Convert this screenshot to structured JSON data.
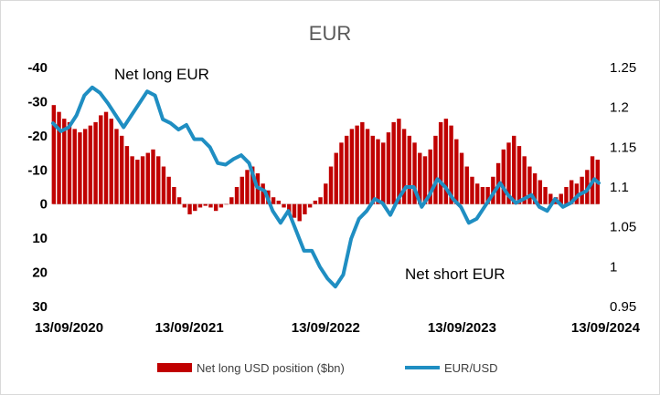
{
  "chart_data": {
    "type": "bar+line",
    "title": "EUR",
    "x_axis": {
      "tick_labels": [
        "13/09/2020",
        "13/09/2021",
        "13/09/2022",
        "13/09/2023",
        "13/09/2024"
      ],
      "range": [
        "2020-09-13",
        "2024-09-13"
      ]
    },
    "y_left": {
      "tick_labels": [
        "-40",
        "-30",
        "-20",
        "-10",
        "0",
        "10",
        "20",
        "30"
      ],
      "range": [
        -40,
        30
      ],
      "inverted": true
    },
    "y_right": {
      "tick_labels": [
        "1.25",
        "1.2",
        "1.15",
        "1.1",
        "1.05",
        "1",
        "0.95"
      ],
      "range": [
        0.95,
        1.25
      ]
    },
    "annotations": [
      "Net long EUR",
      "Net short EUR"
    ],
    "legend": {
      "position": "bottom"
    },
    "colors": {
      "bars": "#c00000",
      "line": "#1f8ec2",
      "text": "#000000"
    },
    "series": [
      {
        "name": "Net long USD position ($bn)",
        "type": "bar",
        "x": [
          "2020-09-15",
          "2020-09-29",
          "2020-10-13",
          "2020-10-27",
          "2020-11-10",
          "2020-11-24",
          "2020-12-08",
          "2020-12-22",
          "2021-01-05",
          "2021-01-19",
          "2021-02-02",
          "2021-02-16",
          "2021-03-02",
          "2021-03-16",
          "2021-03-30",
          "2021-04-13",
          "2021-04-27",
          "2021-05-11",
          "2021-05-25",
          "2021-06-08",
          "2021-06-22",
          "2021-07-06",
          "2021-07-20",
          "2021-08-03",
          "2021-08-17",
          "2021-08-31",
          "2021-09-14",
          "2021-09-28",
          "2021-10-12",
          "2021-10-26",
          "2021-11-09",
          "2021-11-23",
          "2021-12-07",
          "2021-12-21",
          "2022-01-04",
          "2022-01-18",
          "2022-02-01",
          "2022-02-15",
          "2022-03-01",
          "2022-03-15",
          "2022-03-29",
          "2022-04-12",
          "2022-04-26",
          "2022-05-10",
          "2022-05-24",
          "2022-06-07",
          "2022-06-21",
          "2022-07-05",
          "2022-07-19",
          "2022-08-02",
          "2022-08-16",
          "2022-08-30",
          "2022-09-13",
          "2022-09-27",
          "2022-10-11",
          "2022-10-25",
          "2022-11-08",
          "2022-11-22",
          "2022-12-06",
          "2022-12-20",
          "2023-01-03",
          "2023-01-17",
          "2023-01-31",
          "2023-02-14",
          "2023-02-28",
          "2023-03-14",
          "2023-03-28",
          "2023-04-11",
          "2023-04-25",
          "2023-05-09",
          "2023-05-23",
          "2023-06-06",
          "2023-06-20",
          "2023-07-04",
          "2023-07-18",
          "2023-08-01",
          "2023-08-15",
          "2023-08-29",
          "2023-09-12",
          "2023-09-26",
          "2023-10-10",
          "2023-10-24",
          "2023-11-07",
          "2023-11-21",
          "2023-12-05",
          "2023-12-19",
          "2024-01-02",
          "2024-01-16",
          "2024-01-30",
          "2024-02-13",
          "2024-02-27",
          "2024-03-12",
          "2024-03-26",
          "2024-04-09",
          "2024-04-23",
          "2024-05-07",
          "2024-05-21",
          "2024-06-04",
          "2024-06-18",
          "2024-07-02",
          "2024-07-16",
          "2024-07-30",
          "2024-08-13",
          "2024-08-27",
          "2024-09-10"
        ],
        "values": [
          -29,
          -27,
          -25,
          -24,
          -22,
          -21,
          -22,
          -23,
          -24,
          -26,
          -27,
          -25,
          -22,
          -20,
          -17,
          -14,
          -13,
          -14,
          -15,
          -16,
          -14,
          -11,
          -8,
          -5,
          -2,
          1,
          3,
          2,
          1,
          0.5,
          1,
          2,
          1,
          0,
          -2,
          -5,
          -8,
          -10,
          -11,
          -9,
          -6,
          -4,
          -2,
          -1,
          1,
          3,
          4,
          5,
          3,
          1,
          -1,
          -2,
          -6,
          -11,
          -15,
          -18,
          -20,
          -22,
          -23,
          -24,
          -22,
          -20,
          -19,
          -18,
          -21,
          -24,
          -25,
          -22,
          -20,
          -18,
          -15,
          -14,
          -16,
          -20,
          -24,
          -25,
          -23,
          -19,
          -15,
          -11,
          -8,
          -6,
          -5,
          -5,
          -8,
          -12,
          -16,
          -18,
          -20,
          -17,
          -14,
          -11,
          -9,
          -7,
          -5,
          -3,
          -2,
          -3,
          -5,
          -7,
          -6,
          -8,
          -10,
          -14,
          -13
        ]
      },
      {
        "name": "EUR/USD",
        "type": "line",
        "x": [
          "2020-09-13",
          "2020-10-04",
          "2020-10-25",
          "2020-11-15",
          "2020-12-06",
          "2020-12-27",
          "2021-01-17",
          "2021-02-07",
          "2021-02-28",
          "2021-03-21",
          "2021-04-11",
          "2021-05-02",
          "2021-05-23",
          "2021-06-13",
          "2021-07-04",
          "2021-07-25",
          "2021-08-15",
          "2021-09-05",
          "2021-09-26",
          "2021-10-17",
          "2021-11-07",
          "2021-11-28",
          "2021-12-19",
          "2022-01-09",
          "2022-01-30",
          "2022-02-20",
          "2022-03-13",
          "2022-04-03",
          "2022-04-24",
          "2022-05-15",
          "2022-06-05",
          "2022-06-26",
          "2022-07-17",
          "2022-08-07",
          "2022-08-28",
          "2022-09-18",
          "2022-10-09",
          "2022-10-30",
          "2022-11-20",
          "2022-12-11",
          "2023-01-01",
          "2023-01-22",
          "2023-02-12",
          "2023-03-05",
          "2023-03-26",
          "2023-04-16",
          "2023-05-07",
          "2023-05-28",
          "2023-06-18",
          "2023-07-09",
          "2023-07-30",
          "2023-08-20",
          "2023-09-10",
          "2023-10-01",
          "2023-10-22",
          "2023-11-12",
          "2023-12-03",
          "2023-12-24",
          "2024-01-14",
          "2024-02-04",
          "2024-02-25",
          "2024-03-17",
          "2024-04-07",
          "2024-04-28",
          "2024-05-19",
          "2024-06-09",
          "2024-06-30",
          "2024-07-21",
          "2024-08-11",
          "2024-09-01",
          "2024-09-13"
        ],
        "values": [
          1.18,
          1.17,
          1.175,
          1.19,
          1.215,
          1.225,
          1.218,
          1.205,
          1.19,
          1.175,
          1.19,
          1.205,
          1.22,
          1.215,
          1.185,
          1.18,
          1.172,
          1.178,
          1.16,
          1.16,
          1.15,
          1.13,
          1.128,
          1.135,
          1.14,
          1.13,
          1.1,
          1.095,
          1.07,
          1.055,
          1.07,
          1.045,
          1.02,
          1.02,
          1.0,
          0.985,
          0.975,
          0.99,
          1.035,
          1.06,
          1.07,
          1.085,
          1.08,
          1.065,
          1.085,
          1.1,
          1.1,
          1.075,
          1.09,
          1.11,
          1.1,
          1.085,
          1.075,
          1.055,
          1.06,
          1.075,
          1.09,
          1.105,
          1.09,
          1.08,
          1.085,
          1.09,
          1.075,
          1.07,
          1.085,
          1.075,
          1.08,
          1.09,
          1.095,
          1.11,
          1.105
        ]
      }
    ]
  }
}
